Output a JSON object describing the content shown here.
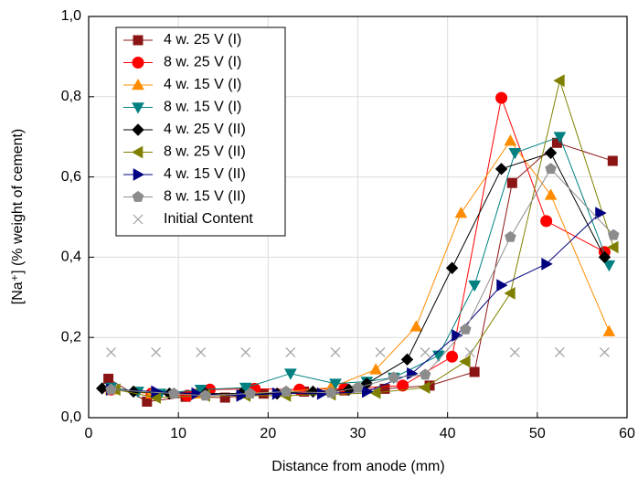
{
  "chart_data": {
    "type": "line",
    "xlabel": "Distance from anode (mm)",
    "ylabel": "[Na⁺] (% weight of cement)",
    "xlim": [
      0,
      60
    ],
    "xticks": [
      0,
      10,
      20,
      30,
      40,
      50,
      60
    ],
    "ylim": [
      0,
      1.0
    ],
    "yticks": [
      {
        "value": 0,
        "label": "0,0"
      },
      {
        "value": 0.2,
        "label": "0,2"
      },
      {
        "value": 0.4,
        "label": "0,4"
      },
      {
        "value": 0.6,
        "label": "0,6"
      },
      {
        "value": 0.8,
        "label": "0,8"
      },
      {
        "value": 1.0,
        "label": "1,0"
      }
    ],
    "grid": true,
    "legend": "upper left",
    "series": [
      {
        "name": "4 w. 25 V (I)",
        "color": "#8b1414",
        "marker": "square",
        "line": true,
        "x": [
          2.2,
          6.5,
          10.8,
          15.2,
          19.5,
          24,
          28.5,
          33,
          38,
          43,
          47.2,
          52.2,
          58.4
        ],
        "values": [
          0.097,
          0.04,
          0.052,
          0.05,
          0.06,
          0.065,
          0.068,
          0.072,
          0.08,
          0.114,
          0.585,
          0.685,
          0.64
        ]
      },
      {
        "name": "8 w. 25 V (I)",
        "color": "#ff0000",
        "marker": "circle",
        "line": true,
        "x": [
          2.5,
          7,
          11,
          13.5,
          18.5,
          23.5,
          28.5,
          35,
          40.5,
          46,
          51,
          57.5
        ],
        "values": [
          0.07,
          0.06,
          0.055,
          0.07,
          0.072,
          0.07,
          0.072,
          0.08,
          0.152,
          0.797,
          0.49,
          0.413
        ]
      },
      {
        "name": "4 w. 15 V (I)",
        "color": "#ff8c00",
        "marker": "triangle-up",
        "line": true,
        "x": [
          2.5,
          7,
          12,
          17,
          22,
          27,
          32,
          36.5,
          41.5,
          47,
          51.5,
          58
        ],
        "values": [
          0.07,
          0.06,
          0.06,
          0.06,
          0.065,
          0.075,
          0.12,
          0.227,
          0.51,
          0.69,
          0.555,
          0.215
        ]
      },
      {
        "name": "8 w. 15 V (I)",
        "color": "#008080",
        "marker": "triangle-down",
        "line": true,
        "x": [
          2.5,
          5.5,
          8,
          12.5,
          17.5,
          22.5,
          27.5,
          31,
          34,
          39,
          43,
          47.5,
          52.5,
          58
        ],
        "values": [
          0.075,
          0.065,
          0.06,
          0.07,
          0.075,
          0.11,
          0.085,
          0.09,
          0.1,
          0.155,
          0.33,
          0.66,
          0.7,
          0.38
        ]
      },
      {
        "name": "4 w. 25 V (II)",
        "color": "#000000",
        "marker": "diamond",
        "line": true,
        "x": [
          1.5,
          5,
          9,
          13,
          17,
          21,
          25,
          29,
          31,
          35.5,
          40.5,
          46,
          51.5,
          57.5
        ],
        "values": [
          0.073,
          0.065,
          0.06,
          0.06,
          0.06,
          0.06,
          0.065,
          0.07,
          0.085,
          0.145,
          0.373,
          0.62,
          0.66,
          0.4
        ]
      },
      {
        "name": "8 w. 25 V (II)",
        "color": "#808000",
        "marker": "triangle-left",
        "line": true,
        "x": [
          3,
          7.5,
          13,
          17.5,
          22,
          27,
          32,
          37.5,
          42,
          47,
          52.5,
          58.5
        ],
        "values": [
          0.07,
          0.05,
          0.055,
          0.055,
          0.055,
          0.058,
          0.062,
          0.075,
          0.14,
          0.31,
          0.84,
          0.425
        ]
      },
      {
        "name": "4 w. 15 V (II)",
        "color": "#000080",
        "marker": "triangle-right",
        "line": true,
        "x": [
          2.5,
          7.5,
          12,
          17,
          21,
          26,
          31,
          36,
          41,
          46,
          51,
          57
        ],
        "values": [
          0.07,
          0.065,
          0.06,
          0.055,
          0.06,
          0.06,
          0.065,
          0.11,
          0.205,
          0.33,
          0.383,
          0.51
        ]
      },
      {
        "name": "8 w. 15 V (II)",
        "color": "#8c8c8c",
        "marker": "pentagon",
        "line": true,
        "x": [
          2.5,
          9.5,
          13,
          18,
          22,
          27,
          30,
          34,
          37.5,
          42,
          47,
          51.5,
          58.5
        ],
        "values": [
          0.07,
          0.06,
          0.055,
          0.06,
          0.065,
          0.062,
          0.075,
          0.1,
          0.107,
          0.22,
          0.45,
          0.62,
          0.455
        ]
      },
      {
        "name": "Initial Content",
        "color": "#a0a0a0",
        "marker": "x",
        "line": false,
        "x": [
          2.5,
          7.5,
          12.5,
          17.5,
          22.5,
          27.5,
          32.5,
          37.5,
          42.5,
          47.5,
          52.5,
          57.5
        ],
        "values": [
          0.163,
          0.163,
          0.163,
          0.163,
          0.163,
          0.163,
          0.163,
          0.163,
          0.163,
          0.163,
          0.163,
          0.163
        ]
      }
    ]
  }
}
